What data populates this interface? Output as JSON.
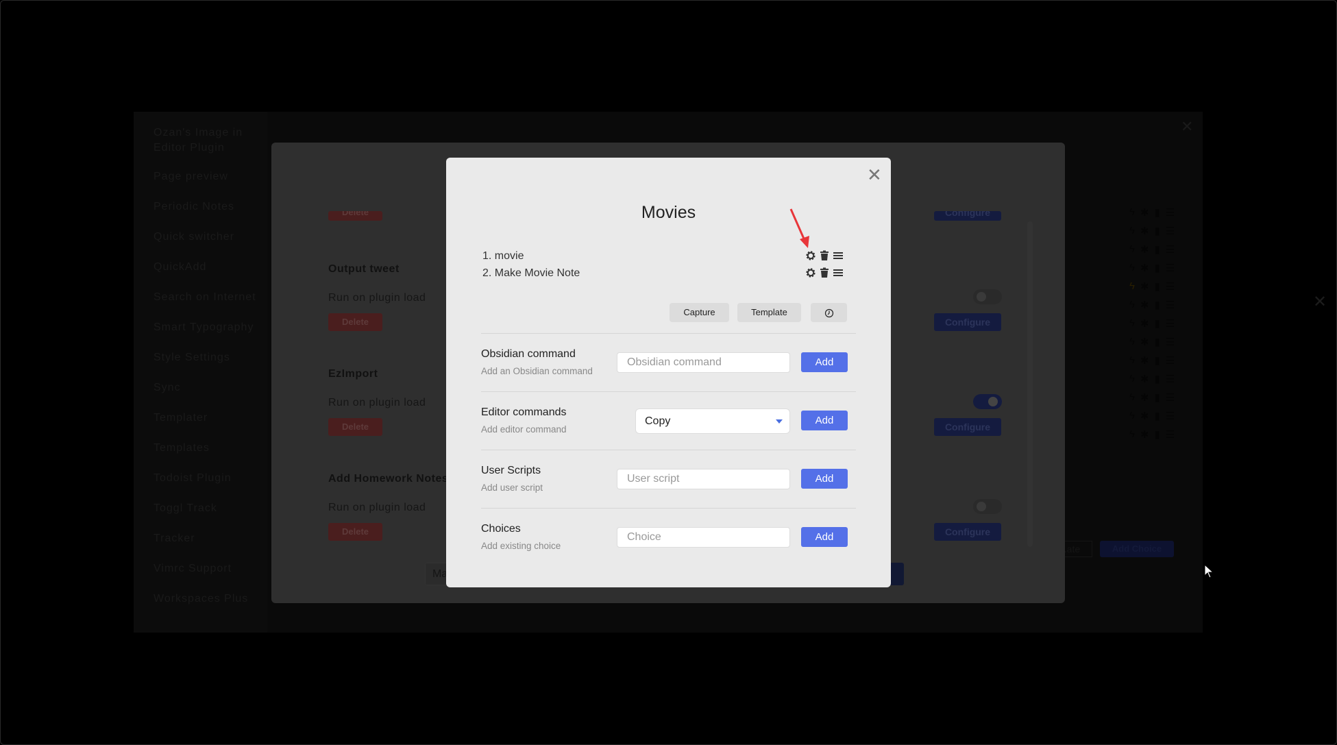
{
  "settings": {
    "sidebar": [
      "Ozan's Image in Editor Plugin",
      "Page preview",
      "Periodic Notes",
      "Quick switcher",
      "QuickAdd",
      "Search on Internet",
      "Smart Typography",
      "Style Settings",
      "Sync",
      "Templater",
      "Templates",
      "Todoist Plugin",
      "Toggl Track",
      "Tracker",
      "Vimrc Support",
      "Workspaces Plus"
    ],
    "choice_type_select": "...ate",
    "add_choice_label": "Add Choice"
  },
  "macro_dialog": {
    "macros": [
      {
        "name": "Output tweet",
        "run_on_load_label": "Run on plugin load",
        "run_on_load": false,
        "delete_label": "Delete",
        "configure_label": "Configure"
      },
      {
        "name": "EzImport",
        "run_on_load_label": "Run on plugin load",
        "run_on_load": true,
        "delete_label": "Delete",
        "configure_label": "Configure"
      },
      {
        "name": "Add Homework Notes",
        "run_on_load_label": "Run on plugin load",
        "run_on_load": false,
        "delete_label": "Delete",
        "configure_label": "Configure"
      }
    ],
    "partial_top_delete": "Delete",
    "partial_top_configure": "Configure",
    "bottom_input_partial": "Ma"
  },
  "modal": {
    "title": "Movies",
    "commands": [
      {
        "label": "1. movie"
      },
      {
        "label": "2. Make Movie Note"
      }
    ],
    "buttons": {
      "capture": "Capture",
      "template": "Template"
    },
    "rows": [
      {
        "name": "Obsidian command",
        "desc": "Add an Obsidian command",
        "placeholder": "Obsidian command",
        "add": "Add"
      },
      {
        "name": "Editor commands",
        "desc": "Add editor command",
        "selected": "Copy",
        "add": "Add"
      },
      {
        "name": "User Scripts",
        "desc": "Add user script",
        "placeholder": "User script",
        "add": "Add"
      },
      {
        "name": "Choices",
        "desc": "Add existing choice",
        "placeholder": "Choice",
        "add": "Add"
      }
    ]
  },
  "colors": {
    "accent": "#5470e8",
    "annotation_arrow": "#e8363a"
  }
}
